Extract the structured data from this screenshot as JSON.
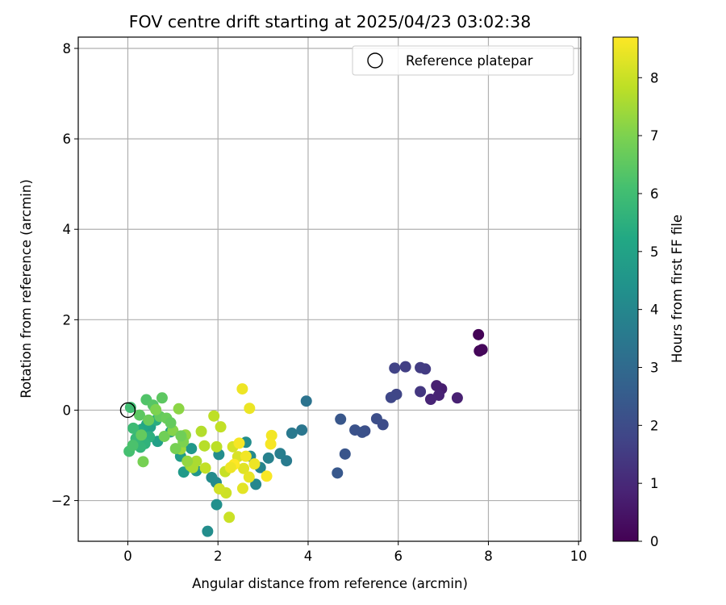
{
  "chart_data": {
    "type": "scatter",
    "title": "FOV centre drift starting at 2025/04/23 03:02:38",
    "xlabel": "Angular distance from reference (arcmin)",
    "ylabel": "Rotation from reference (arcmin)",
    "xlim": [
      -1.1,
      10.05
    ],
    "ylim": [
      -2.9,
      8.25
    ],
    "xticks": [
      0,
      2,
      4,
      6,
      8,
      10
    ],
    "yticks": [
      -2,
      0,
      2,
      4,
      6,
      8
    ],
    "grid": true,
    "legend": {
      "placement": "top-right",
      "entries": [
        "Reference platepar"
      ]
    },
    "reference_point": {
      "x": 0,
      "y": 0
    },
    "colorbar": {
      "label": "Hours from first FF file",
      "colormap": "viridis",
      "range": [
        0,
        8.7
      ],
      "ticks": [
        0,
        1,
        2,
        3,
        4,
        5,
        6,
        7,
        8
      ]
    },
    "points": [
      {
        "x": 7.78,
        "y": 1.67,
        "c": 0.05
      },
      {
        "x": 7.8,
        "y": 1.31,
        "c": 0.1
      },
      {
        "x": 7.86,
        "y": 1.34,
        "c": 0.15
      },
      {
        "x": 7.31,
        "y": 0.27,
        "c": 0.8
      },
      {
        "x": 6.96,
        "y": 0.47,
        "c": 0.7
      },
      {
        "x": 6.85,
        "y": 0.54,
        "c": 0.75
      },
      {
        "x": 6.9,
        "y": 0.33,
        "c": 0.85
      },
      {
        "x": 6.72,
        "y": 0.24,
        "c": 0.9
      },
      {
        "x": 6.49,
        "y": 0.41,
        "c": 1.4
      },
      {
        "x": 6.6,
        "y": 0.91,
        "c": 1.5
      },
      {
        "x": 6.49,
        "y": 0.94,
        "c": 1.55
      },
      {
        "x": 6.16,
        "y": 0.96,
        "c": 1.6
      },
      {
        "x": 5.92,
        "y": 0.93,
        "c": 1.7
      },
      {
        "x": 5.96,
        "y": 0.35,
        "c": 1.8
      },
      {
        "x": 5.84,
        "y": 0.28,
        "c": 1.85
      },
      {
        "x": 5.66,
        "y": -0.32,
        "c": 2.0
      },
      {
        "x": 5.52,
        "y": -0.19,
        "c": 2.05
      },
      {
        "x": 5.26,
        "y": -0.46,
        "c": 2.1
      },
      {
        "x": 5.2,
        "y": -0.49,
        "c": 2.15
      },
      {
        "x": 5.04,
        "y": -0.44,
        "c": 2.2
      },
      {
        "x": 4.82,
        "y": -0.97,
        "c": 2.3
      },
      {
        "x": 4.72,
        "y": -0.2,
        "c": 2.35
      },
      {
        "x": 4.65,
        "y": -1.39,
        "c": 2.4
      },
      {
        "x": 3.96,
        "y": 0.2,
        "c": 3.3
      },
      {
        "x": 3.86,
        "y": -0.44,
        "c": 3.4
      },
      {
        "x": 3.64,
        "y": -0.51,
        "c": 3.5
      },
      {
        "x": 3.52,
        "y": -1.12,
        "c": 3.6
      },
      {
        "x": 3.38,
        "y": -0.96,
        "c": 3.7
      },
      {
        "x": 3.12,
        "y": -1.06,
        "c": 3.8
      },
      {
        "x": 2.94,
        "y": -1.27,
        "c": 3.9
      },
      {
        "x": 2.84,
        "y": -1.64,
        "c": 4.0
      },
      {
        "x": 2.72,
        "y": -1.02,
        "c": 4.1
      },
      {
        "x": 2.62,
        "y": -0.71,
        "c": 4.2
      },
      {
        "x": 1.97,
        "y": -2.09,
        "c": 4.3
      },
      {
        "x": 1.77,
        "y": -2.68,
        "c": 4.2
      },
      {
        "x": 1.96,
        "y": -1.6,
        "c": 4.1
      },
      {
        "x": 1.86,
        "y": -1.49,
        "c": 4.15
      },
      {
        "x": 2.02,
        "y": -0.98,
        "c": 4.2
      },
      {
        "x": 1.52,
        "y": -1.34,
        "c": 4.5
      },
      {
        "x": 1.41,
        "y": -0.85,
        "c": 4.6
      },
      {
        "x": 1.24,
        "y": -1.37,
        "c": 4.7
      },
      {
        "x": 1.17,
        "y": -1.02,
        "c": 4.75
      },
      {
        "x": 0.95,
        "y": -0.48,
        "c": 4.8
      },
      {
        "x": 0.66,
        "y": -0.69,
        "c": 4.9
      },
      {
        "x": 0.5,
        "y": -0.37,
        "c": 5.0
      },
      {
        "x": 0.42,
        "y": -0.31,
        "c": 5.1
      },
      {
        "x": 0.32,
        "y": -0.42,
        "c": 5.2
      },
      {
        "x": 0.25,
        "y": -0.45,
        "c": 5.3
      },
      {
        "x": 0.63,
        "y": -0.22,
        "c": 5.4
      },
      {
        "x": 0.48,
        "y": -0.59,
        "c": 5.5
      },
      {
        "x": 0.38,
        "y": -0.74,
        "c": 5.6
      },
      {
        "x": 0.28,
        "y": -0.82,
        "c": 5.7
      },
      {
        "x": 0.18,
        "y": -0.63,
        "c": 5.8
      },
      {
        "x": 0.12,
        "y": -0.4,
        "c": 5.9
      },
      {
        "x": 0.06,
        "y": 0.06,
        "c": 6.0
      },
      {
        "x": 0.03,
        "y": -0.91,
        "c": 6.1
      },
      {
        "x": 0.11,
        "y": -0.78,
        "c": 6.2
      },
      {
        "x": 0.41,
        "y": 0.23,
        "c": 6.3
      },
      {
        "x": 0.56,
        "y": 0.11,
        "c": 6.4
      },
      {
        "x": 0.76,
        "y": 0.27,
        "c": 6.5
      },
      {
        "x": 0.71,
        "y": -0.14,
        "c": 6.6
      },
      {
        "x": 0.86,
        "y": -0.18,
        "c": 6.7
      },
      {
        "x": 0.81,
        "y": -0.58,
        "c": 6.8
      },
      {
        "x": 0.34,
        "y": -1.14,
        "c": 6.9
      },
      {
        "x": 0.26,
        "y": -0.11,
        "c": 6.5
      },
      {
        "x": 0.3,
        "y": -0.55,
        "c": 6.6
      },
      {
        "x": 0.46,
        "y": -0.22,
        "c": 6.7
      },
      {
        "x": 0.62,
        "y": 0.01,
        "c": 7.0
      },
      {
        "x": 1.0,
        "y": -0.45,
        "c": 7.1
      },
      {
        "x": 1.13,
        "y": 0.03,
        "c": 7.2
      },
      {
        "x": 1.28,
        "y": -0.55,
        "c": 7.3
      },
      {
        "x": 1.17,
        "y": -0.86,
        "c": 7.4
      },
      {
        "x": 1.39,
        "y": -1.23,
        "c": 7.5
      },
      {
        "x": 1.52,
        "y": -1.13,
        "c": 7.6
      },
      {
        "x": 1.63,
        "y": -0.47,
        "c": 7.7
      },
      {
        "x": 1.7,
        "y": -0.79,
        "c": 7.75
      },
      {
        "x": 1.97,
        "y": -0.81,
        "c": 7.8
      },
      {
        "x": 1.91,
        "y": -0.13,
        "c": 7.85
      },
      {
        "x": 2.06,
        "y": -0.37,
        "c": 7.9
      },
      {
        "x": 2.16,
        "y": -1.36,
        "c": 7.95
      },
      {
        "x": 2.25,
        "y": -2.37,
        "c": 8.0
      },
      {
        "x": 2.18,
        "y": -1.83,
        "c": 8.05
      },
      {
        "x": 2.03,
        "y": -1.74,
        "c": 8.1
      },
      {
        "x": 2.33,
        "y": -0.81,
        "c": 8.15
      },
      {
        "x": 2.44,
        "y": -1.03,
        "c": 8.2
      },
      {
        "x": 2.57,
        "y": -1.29,
        "c": 8.3
      },
      {
        "x": 2.55,
        "y": -1.73,
        "c": 8.35
      },
      {
        "x": 2.69,
        "y": -1.48,
        "c": 8.4
      },
      {
        "x": 2.54,
        "y": 0.47,
        "c": 8.5
      },
      {
        "x": 2.7,
        "y": 0.04,
        "c": 8.45
      },
      {
        "x": 2.81,
        "y": -1.19,
        "c": 8.5
      },
      {
        "x": 3.19,
        "y": -0.56,
        "c": 8.55
      },
      {
        "x": 3.17,
        "y": -0.75,
        "c": 8.6
      },
      {
        "x": 3.08,
        "y": -1.46,
        "c": 8.65
      },
      {
        "x": 2.36,
        "y": -1.2,
        "c": 8.7
      },
      {
        "x": 2.47,
        "y": -0.73,
        "c": 8.6
      },
      {
        "x": 2.62,
        "y": -1.02,
        "c": 8.55
      },
      {
        "x": 2.28,
        "y": -1.27,
        "c": 8.5
      },
      {
        "x": 1.72,
        "y": -1.28,
        "c": 7.9
      },
      {
        "x": 1.44,
        "y": -1.27,
        "c": 7.6
      },
      {
        "x": 1.32,
        "y": -1.13,
        "c": 7.3
      },
      {
        "x": 1.23,
        "y": -0.7,
        "c": 7.0
      },
      {
        "x": 1.18,
        "y": -0.57,
        "c": 6.8
      },
      {
        "x": 1.06,
        "y": -0.85,
        "c": 6.9
      },
      {
        "x": 0.95,
        "y": -0.28,
        "c": 6.6
      }
    ]
  }
}
